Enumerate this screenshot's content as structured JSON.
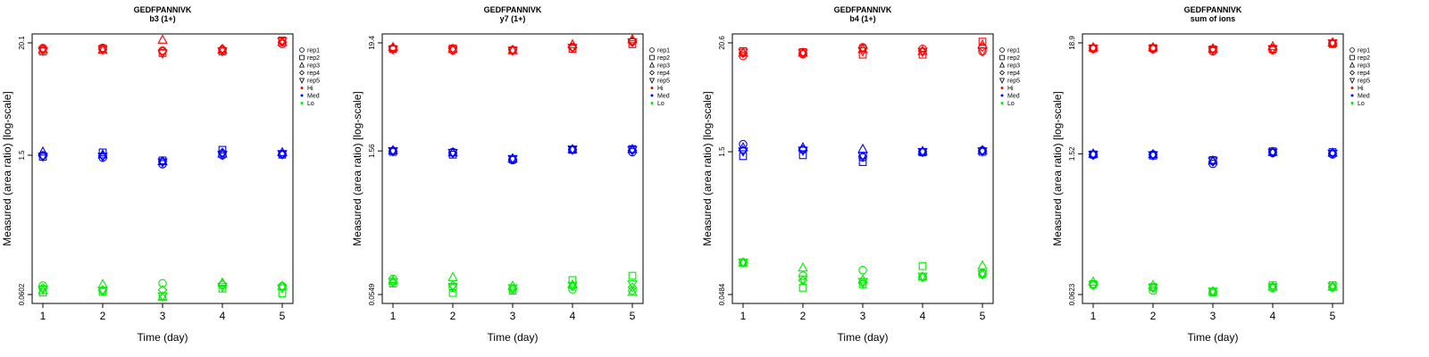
{
  "figure": {
    "legend_items": [
      {
        "label": "rep1",
        "symbol": "circle"
      },
      {
        "label": "rep2",
        "symbol": "square"
      },
      {
        "label": "rep3",
        "symbol": "triangle"
      },
      {
        "label": "rep4",
        "symbol": "diamond"
      },
      {
        "label": "rep5",
        "symbol": "triangle-down"
      },
      {
        "label": "Hi",
        "symbol": "dot",
        "color": "#ff0000"
      },
      {
        "label": "Med",
        "symbol": "dot",
        "color": "#0000ff"
      },
      {
        "label": "Lo",
        "symbol": "dot",
        "color": "#00ee00"
      }
    ],
    "colors": {
      "Hi": "#ff0000",
      "Med": "#0000ff",
      "Lo": "#00ee00",
      "axis": "#000000"
    }
  },
  "chart_data": [
    {
      "type": "scatter",
      "title": "GEDFPANNIVK",
      "subtitle": "b3 (1+)",
      "xlabel": "Time (day)",
      "ylabel": "Measured (area ratio) [log-scale]",
      "x_ticks": [
        1,
        2,
        3,
        4,
        5
      ],
      "y_ticks": [
        0.0602,
        1.5,
        20.1
      ],
      "y_tick_labels": [
        "0.0602",
        "1.5",
        "20.1"
      ],
      "ylim_log": [
        0.0602,
        20.1
      ],
      "scale": "log",
      "series": [
        {
          "name": "Hi",
          "reps": [
            [
              17.8,
              17.9,
              16.8,
              17.0,
              19.6
            ],
            [
              16.5,
              17.6,
              15.9,
              16.5,
              21.2
            ],
            [
              17.2,
              17.0,
              21.5,
              17.1,
              20.3
            ],
            [
              17.6,
              17.3,
              16.6,
              17.6,
              20.4
            ],
            [
              16.8,
              17.2,
              15.8,
              16.6,
              20.9
            ]
          ]
        },
        {
          "name": "Med",
          "reps": [
            [
              1.5,
              1.42,
              1.22,
              1.5,
              1.55
            ],
            [
              1.45,
              1.6,
              1.33,
              1.7,
              1.52
            ],
            [
              1.62,
              1.52,
              1.3,
              1.55,
              1.6
            ],
            [
              1.48,
              1.48,
              1.3,
              1.6,
              1.52
            ],
            [
              1.46,
              1.46,
              1.28,
              1.52,
              1.55
            ]
          ]
        },
        {
          "name": "Lo",
          "reps": [
            [
              0.074,
              0.066,
              0.078,
              0.075,
              0.073
            ],
            [
              0.063,
              0.064,
              0.058,
              0.069,
              0.062
            ],
            [
              0.066,
              0.076,
              0.057,
              0.079,
              0.073
            ],
            [
              0.07,
              0.067,
              0.067,
              0.077,
              0.073
            ],
            [
              0.068,
              0.066,
              0.058,
              0.072,
              0.07
            ]
          ]
        }
      ]
    },
    {
      "type": "scatter",
      "title": "GEDFPANNIVK",
      "subtitle": "y7 (1+)",
      "xlabel": "Time (day)",
      "ylabel": "Measured (area ratio) [log-scale]",
      "x_ticks": [
        1,
        2,
        3,
        4,
        5
      ],
      "y_ticks": [
        0.0549,
        1.56,
        19.4
      ],
      "y_tick_labels": [
        "0.0549",
        "1.56",
        "19.4"
      ],
      "ylim_log": [
        0.0549,
        19.4
      ],
      "scale": "log",
      "series": [
        {
          "name": "Hi",
          "reps": [
            [
              17.0,
              16.3,
              16.4,
              17.6,
              20.0
            ],
            [
              16.8,
              17.0,
              16.3,
              16.9,
              18.8
            ],
            [
              17.5,
              16.8,
              16.3,
              18.6,
              21.0
            ],
            [
              17.2,
              17.0,
              16.6,
              17.5,
              20.3
            ],
            [
              16.7,
              16.5,
              16.2,
              17.4,
              19.8
            ]
          ]
        },
        {
          "name": "Med",
          "reps": [
            [
              1.57,
              1.52,
              1.26,
              1.61,
              1.52
            ],
            [
              1.53,
              1.43,
              1.28,
              1.6,
              1.63
            ],
            [
              1.58,
              1.5,
              1.31,
              1.62,
              1.62
            ],
            [
              1.55,
              1.48,
              1.28,
              1.6,
              1.58
            ],
            [
              1.56,
              1.5,
              1.3,
              1.62,
              1.6
            ]
          ]
        },
        {
          "name": "Lo",
          "reps": [
            [
              0.079,
              0.064,
              0.062,
              0.062,
              0.06
            ],
            [
              0.071,
              0.057,
              0.06,
              0.077,
              0.085
            ],
            [
              0.076,
              0.082,
              0.067,
              0.069,
              0.058
            ],
            [
              0.073,
              0.068,
              0.063,
              0.066,
              0.065
            ],
            [
              0.074,
              0.066,
              0.064,
              0.068,
              0.07
            ]
          ]
        }
      ]
    },
    {
      "type": "scatter",
      "title": "GEDFPANNIVK",
      "subtitle": "b4 (1+)",
      "xlabel": "Time (day)",
      "ylabel": "Measured (area ratio) [log-scale]",
      "x_ticks": [
        1,
        2,
        3,
        4,
        5
      ],
      "y_ticks": [
        0.0484,
        1.5,
        20.6
      ],
      "y_tick_labels": [
        "0.0484",
        "1.5",
        "20.6"
      ],
      "ylim_log": [
        0.0484,
        20.6
      ],
      "scale": "log",
      "series": [
        {
          "name": "Hi",
          "reps": [
            [
              15.0,
              15.7,
              18.5,
              17.8,
              16.8
            ],
            [
              16.9,
              16.5,
              15.5,
              15.5,
              21.2
            ],
            [
              16.2,
              16.2,
              17.6,
              16.8,
              19.6
            ],
            [
              16.0,
              16.0,
              18.3,
              17.0,
              18.6
            ],
            [
              16.4,
              16.1,
              16.9,
              16.7,
              16.8
            ]
          ]
        },
        {
          "name": "Med",
          "reps": [
            [
              1.8,
              1.58,
              1.31,
              1.48,
              1.55
            ],
            [
              1.35,
              1.38,
              1.17,
              1.48,
              1.5
            ],
            [
              1.66,
              1.66,
              1.6,
              1.52,
              1.55
            ],
            [
              1.55,
              1.58,
              1.35,
              1.5,
              1.52
            ],
            [
              1.52,
              1.55,
              1.36,
              1.5,
              1.52
            ]
          ]
        },
        {
          "name": "Lo",
          "reps": [
            [
              0.105,
              0.076,
              0.087,
              0.074,
              0.081
            ],
            [
              0.104,
              0.057,
              0.062,
              0.096,
              0.079
            ],
            [
              0.104,
              0.092,
              0.069,
              0.074,
              0.097
            ],
            [
              0.104,
              0.068,
              0.064,
              0.073,
              0.078
            ],
            [
              0.105,
              0.07,
              0.066,
              0.075,
              0.08
            ]
          ]
        }
      ]
    },
    {
      "type": "scatter",
      "title": "GEDFPANNIVK",
      "subtitle": "sum of ions",
      "xlabel": "Time (day)",
      "ylabel": "Measured (area ratio) [log-scale]",
      "x_ticks": [
        1,
        2,
        3,
        4,
        5
      ],
      "y_ticks": [
        0.0623,
        1.52,
        18.9
      ],
      "y_tick_labels": [
        "0.0623",
        "1.52",
        "18.9"
      ],
      "ylim_log": [
        0.0623,
        18.9
      ],
      "scale": "log",
      "series": [
        {
          "name": "Hi",
          "reps": [
            [
              16.5,
              16.4,
              15.6,
              16.0,
              18.6
            ],
            [
              16.7,
              16.8,
              16.3,
              16.5,
              18.4
            ],
            [
              17.0,
              17.0,
              16.6,
              17.4,
              19.0
            ],
            [
              16.8,
              16.7,
              16.4,
              16.6,
              18.7
            ],
            [
              16.6,
              16.5,
              16.1,
              16.4,
              18.8
            ]
          ]
        },
        {
          "name": "Med",
          "reps": [
            [
              1.48,
              1.5,
              1.21,
              1.55,
              1.5
            ],
            [
              1.5,
              1.46,
              1.32,
              1.61,
              1.58
            ],
            [
              1.52,
              1.5,
              1.3,
              1.58,
              1.55
            ],
            [
              1.5,
              1.49,
              1.27,
              1.59,
              1.54
            ],
            [
              1.49,
              1.48,
              1.29,
              1.57,
              1.53
            ]
          ]
        },
        {
          "name": "Lo",
          "reps": [
            [
              0.078,
              0.068,
              0.066,
              0.072,
              0.073
            ],
            [
              0.079,
              0.074,
              0.065,
              0.077,
              0.077
            ],
            [
              0.083,
              0.077,
              0.067,
              0.074,
              0.074
            ],
            [
              0.078,
              0.072,
              0.066,
              0.075,
              0.074
            ],
            [
              0.077,
              0.073,
              0.067,
              0.074,
              0.075
            ]
          ]
        }
      ]
    }
  ]
}
